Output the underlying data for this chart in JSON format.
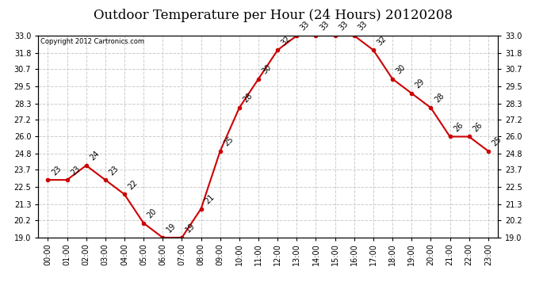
{
  "title": "Outdoor Temperature per Hour (24 Hours) 20120208",
  "copyright_text": "Copyright 2012 Cartronics.com",
  "hours": [
    "00:00",
    "01:00",
    "02:00",
    "03:00",
    "04:00",
    "05:00",
    "06:00",
    "07:00",
    "08:00",
    "09:00",
    "10:00",
    "11:00",
    "12:00",
    "13:00",
    "14:00",
    "15:00",
    "16:00",
    "17:00",
    "18:00",
    "19:00",
    "20:00",
    "21:00",
    "22:00",
    "23:00"
  ],
  "temps": [
    23,
    23,
    24,
    23,
    22,
    20,
    19,
    19,
    21,
    25,
    28,
    30,
    32,
    33,
    33,
    33,
    33,
    32,
    30,
    29,
    28,
    26,
    26,
    25
  ],
  "ylim_min": 19.0,
  "ylim_max": 33.0,
  "yticks": [
    19.0,
    20.2,
    21.3,
    22.5,
    23.7,
    24.8,
    26.0,
    27.2,
    28.3,
    29.5,
    30.7,
    31.8,
    33.0
  ],
  "line_color": "#cc0000",
  "marker_color": "#cc0000",
  "background_color": "#ffffff",
  "grid_color": "#cccccc",
  "title_fontsize": 12,
  "tick_fontsize": 7,
  "annotation_fontsize": 7,
  "copyright_fontsize": 6
}
